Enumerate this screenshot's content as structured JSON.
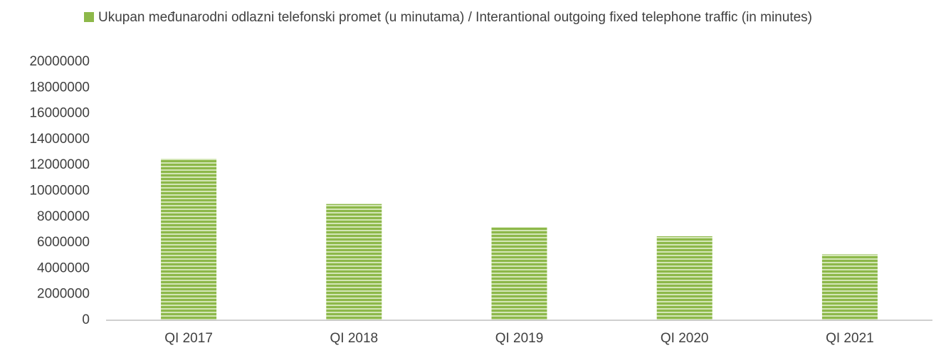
{
  "chart_data": {
    "type": "bar",
    "series": [
      {
        "name": "Ukupan međunarodni odlazni telefonski promet (u minutama) / Interantional outgoing fixed telephone traffic (in minutes)",
        "color": "#8db84a",
        "values": [
          12500000,
          9000000,
          7200000,
          6500000,
          5100000
        ]
      }
    ],
    "categories": [
      "QI 2017",
      "QI 2018",
      "QI 2019",
      "QI 2020",
      "QI 2021"
    ],
    "ylim": [
      0,
      20000000
    ],
    "yticks": [
      0,
      2000000,
      4000000,
      6000000,
      8000000,
      10000000,
      12000000,
      14000000,
      16000000,
      18000000,
      20000000
    ],
    "grid": false
  }
}
